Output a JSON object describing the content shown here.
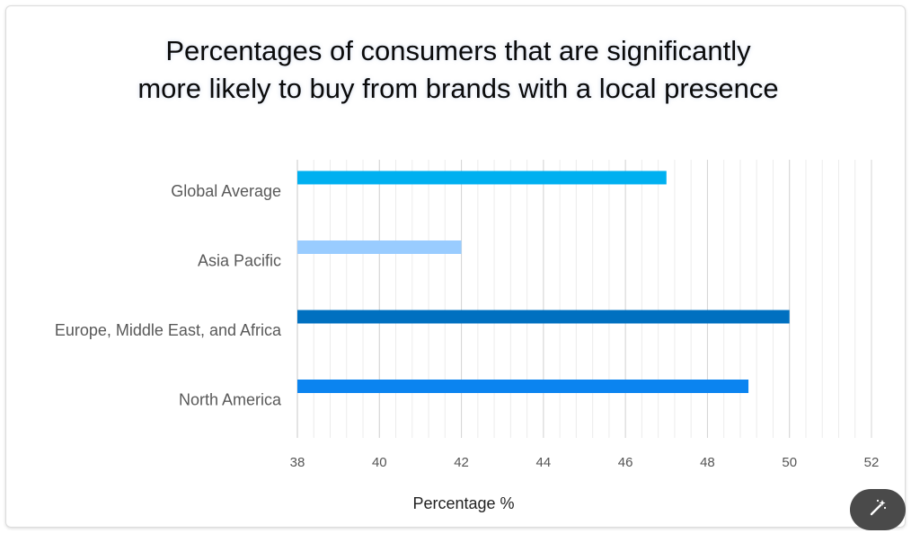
{
  "chart_data": {
    "type": "bar",
    "orientation": "horizontal",
    "title_lines": [
      "Percentages of consumers that are significantly",
      "more likely to buy from brands with a local presence"
    ],
    "categories": [
      "Global Average",
      "Asia Pacific",
      "Europe, Middle East, and Africa",
      "North America"
    ],
    "values": [
      47,
      42,
      50,
      49
    ],
    "bar_colors": [
      "#00b0f0",
      "#99ccff",
      "#0070c0",
      "#0b84f0"
    ],
    "xlabel": "Percentage %",
    "ylabel": "",
    "xlim": [
      38,
      52
    ],
    "xticks": [
      "38",
      "40",
      "42",
      "44",
      "46",
      "48",
      "50",
      "52"
    ],
    "grid": true,
    "legend": "none"
  },
  "controls": {
    "magic_icon": "magic-wand-icon"
  }
}
